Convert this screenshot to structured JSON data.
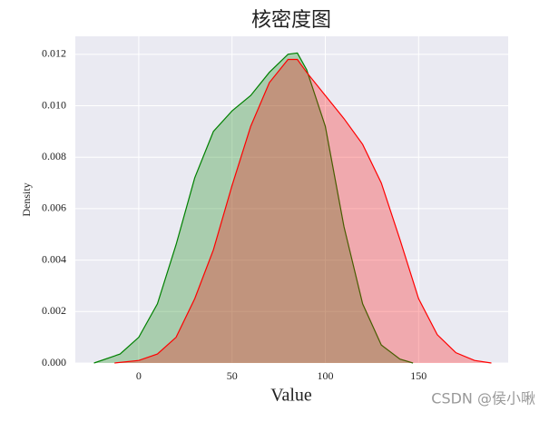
{
  "chart_data": {
    "type": "kde",
    "title": "核密度图",
    "x_label": "Value",
    "y_label": "Density",
    "watermark": "CSDN @侯小啾",
    "xlim": [
      -34,
      198
    ],
    "ylim": [
      0,
      0.0127
    ],
    "xticks": [
      0,
      50,
      100,
      150
    ],
    "yticks": [
      {
        "value": 0,
        "label": "0.000"
      },
      {
        "value": 0.002,
        "label": "0.002"
      },
      {
        "value": 0.004,
        "label": "0.004"
      },
      {
        "value": 0.006,
        "label": "0.006"
      },
      {
        "value": 0.008,
        "label": "0.008"
      },
      {
        "value": 0.01,
        "label": "0.010"
      },
      {
        "value": 0.012,
        "label": "0.012"
      }
    ],
    "grid": true,
    "series": [
      {
        "color": "#008000",
        "x": [
          -24,
          -10,
          0,
          10,
          20,
          30,
          40,
          50,
          60,
          70,
          80,
          85,
          90,
          100,
          110,
          120,
          130,
          140,
          147
        ],
        "values": [
          0,
          0.00035,
          0.001,
          0.0023,
          0.0046,
          0.0072,
          0.009,
          0.0098,
          0.0104,
          0.0113,
          0.012,
          0.01205,
          0.0114,
          0.0092,
          0.0053,
          0.0023,
          0.0007,
          0.00015,
          0
        ]
      },
      {
        "color": "#ff0000",
        "x": [
          -13,
          0,
          10,
          20,
          30,
          40,
          50,
          60,
          70,
          80,
          85,
          90,
          100,
          110,
          120,
          130,
          140,
          150,
          160,
          170,
          180,
          189
        ],
        "values": [
          0,
          0.0001,
          0.00035,
          0.001,
          0.0025,
          0.0044,
          0.0069,
          0.0092,
          0.0109,
          0.0118,
          0.0118,
          0.0113,
          0.0104,
          0.0095,
          0.0085,
          0.007,
          0.0048,
          0.0025,
          0.0011,
          0.0004,
          0.0001,
          0
        ]
      }
    ]
  }
}
